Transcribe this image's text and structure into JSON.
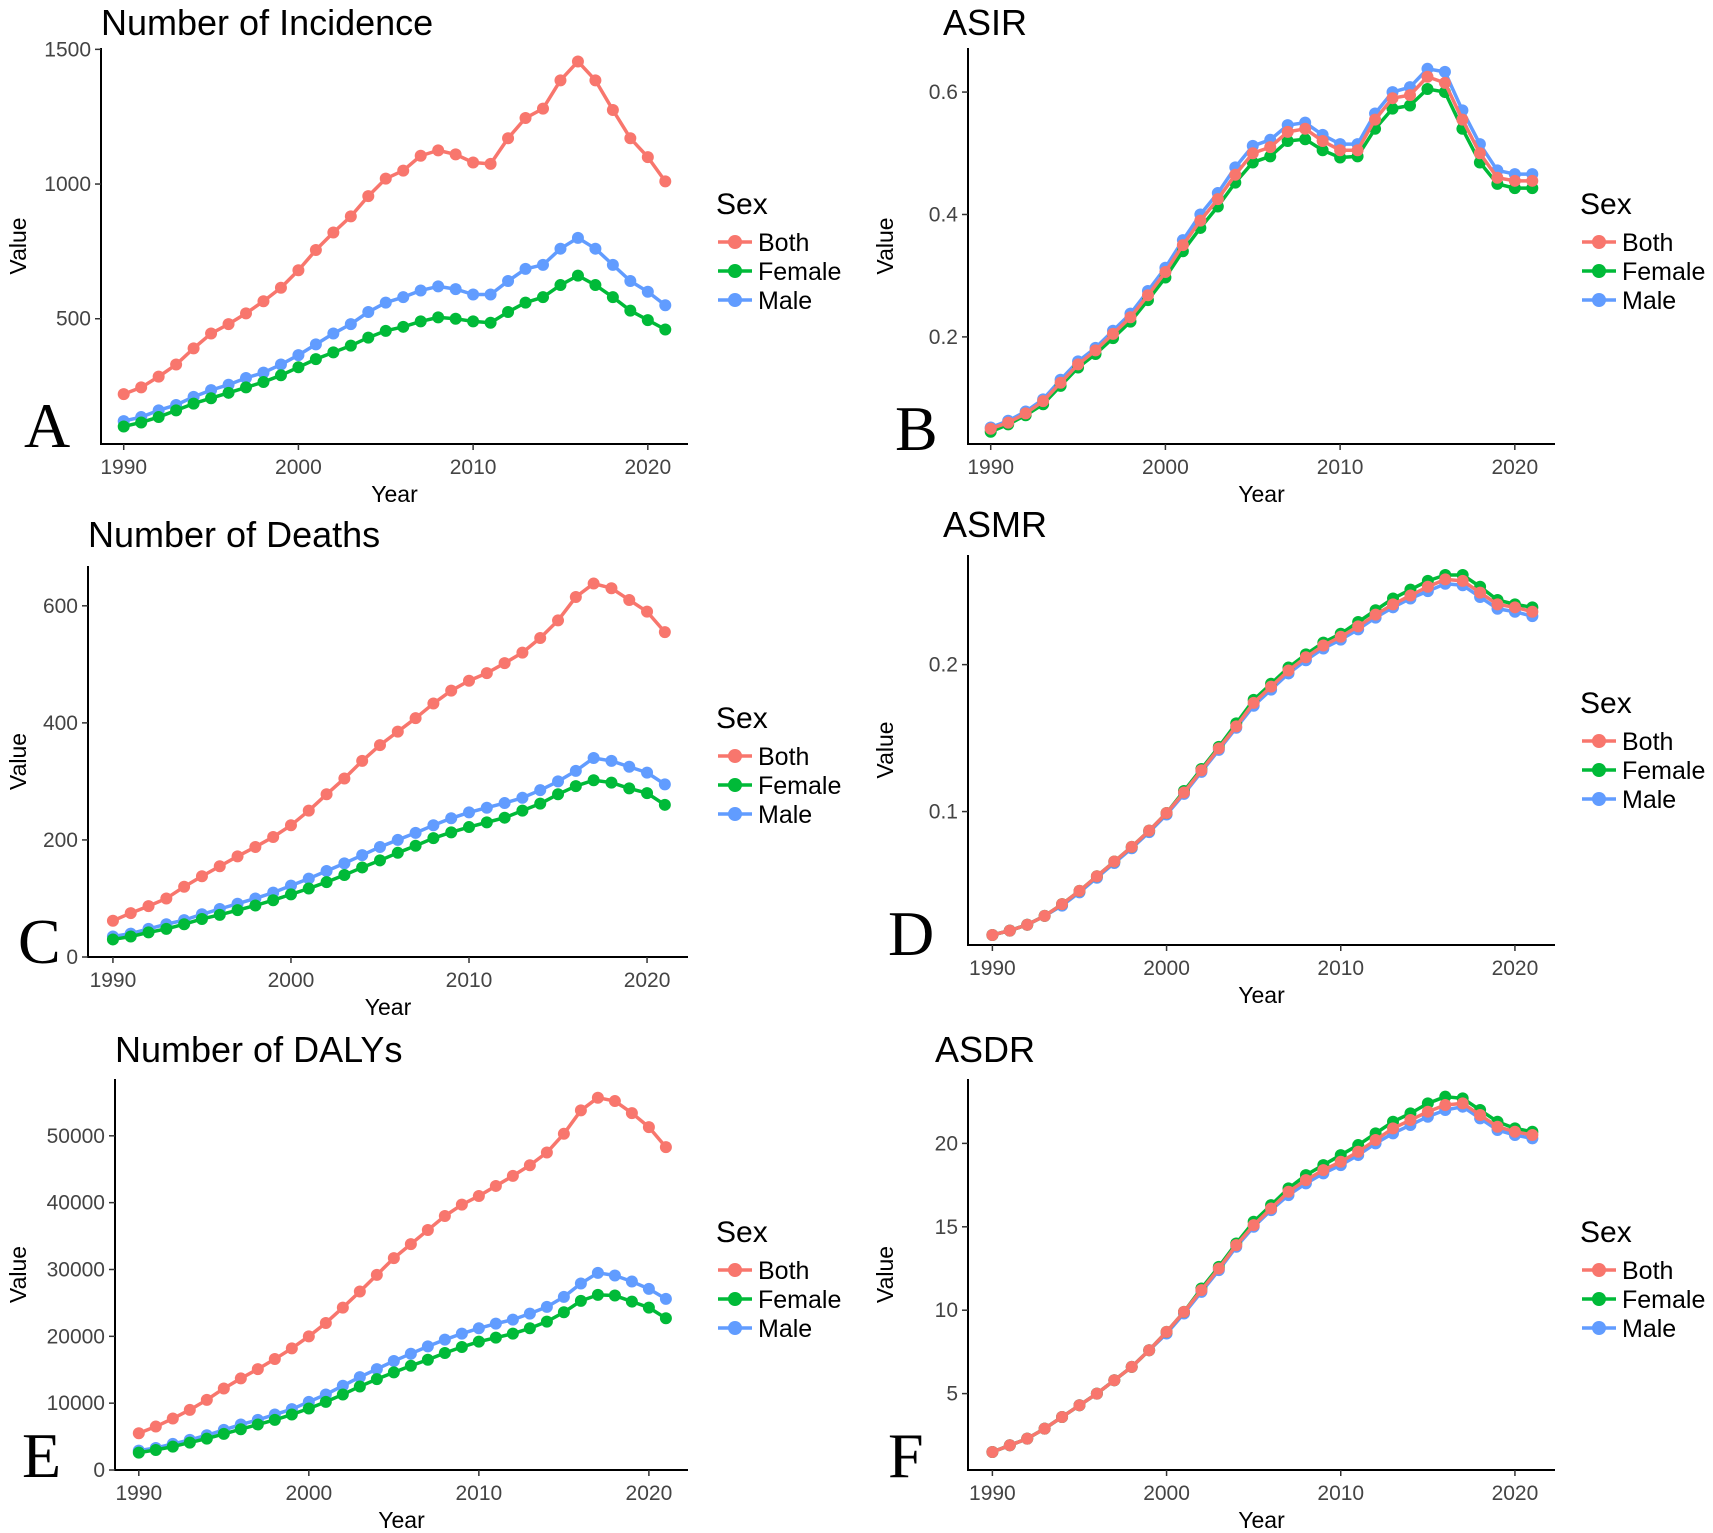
{
  "chart_data": [
    {
      "panel": "A",
      "type": "line",
      "title": "Number of Incidence",
      "xlabel": "Year",
      "ylabel": "Value",
      "xlim": [
        1988.7,
        2022.3
      ],
      "ylim": [
        35,
        1505
      ],
      "xticks": [
        1990,
        2000,
        2010,
        2020
      ],
      "yticks": [
        500,
        1000,
        1500
      ],
      "x": [
        1990,
        1991,
        1992,
        1993,
        1994,
        1995,
        1996,
        1997,
        1998,
        1999,
        2000,
        2001,
        2002,
        2003,
        2004,
        2005,
        2006,
        2007,
        2008,
        2009,
        2010,
        2011,
        2012,
        2013,
        2014,
        2015,
        2016,
        2017,
        2018,
        2019,
        2020,
        2021
      ],
      "series": [
        {
          "name": "Both",
          "values": [
            220,
            245,
            285,
            330,
            390,
            445,
            480,
            520,
            565,
            615,
            680,
            755,
            820,
            880,
            955,
            1020,
            1050,
            1105,
            1125,
            1110,
            1080,
            1075,
            1170,
            1245,
            1280,
            1385,
            1455,
            1385,
            1275,
            1170,
            1100,
            1010
          ]
        },
        {
          "name": "Female",
          "values": [
            100,
            115,
            135,
            160,
            185,
            205,
            225,
            245,
            265,
            290,
            320,
            350,
            375,
            400,
            430,
            455,
            470,
            490,
            505,
            500,
            490,
            485,
            525,
            560,
            580,
            625,
            660,
            625,
            580,
            530,
            495,
            460
          ]
        },
        {
          "name": "Male",
          "values": [
            120,
            135,
            160,
            180,
            210,
            235,
            255,
            280,
            300,
            330,
            365,
            405,
            445,
            480,
            525,
            560,
            580,
            605,
            620,
            610,
            590,
            590,
            640,
            685,
            700,
            760,
            800,
            760,
            700,
            640,
            600,
            550
          ]
        }
      ],
      "legend": {
        "title": "Sex",
        "entries": [
          "Both",
          "Female",
          "Male"
        ]
      }
    },
    {
      "panel": "B",
      "type": "line",
      "title": "ASIR",
      "xlabel": "Year",
      "ylabel": "Value",
      "xlim": [
        1988.7,
        2022.3
      ],
      "ylim": [
        0.025,
        0.672
      ],
      "xticks": [
        1990,
        2000,
        2010,
        2020
      ],
      "yticks": [
        0.2,
        0.4,
        0.6
      ],
      "x": [
        1990,
        1991,
        1992,
        1993,
        1994,
        1995,
        1996,
        1997,
        1998,
        1999,
        2000,
        2001,
        2002,
        2003,
        2004,
        2005,
        2006,
        2007,
        2008,
        2009,
        2010,
        2011,
        2012,
        2013,
        2014,
        2015,
        2016,
        2017,
        2018,
        2019,
        2020,
        2021
      ],
      "series": [
        {
          "name": "Both",
          "values": [
            0.05,
            0.06,
            0.075,
            0.095,
            0.125,
            0.155,
            0.178,
            0.205,
            0.232,
            0.268,
            0.306,
            0.35,
            0.39,
            0.425,
            0.465,
            0.5,
            0.51,
            0.535,
            0.54,
            0.52,
            0.505,
            0.505,
            0.555,
            0.59,
            0.595,
            0.625,
            0.615,
            0.555,
            0.5,
            0.46,
            0.455,
            0.455
          ]
        },
        {
          "name": "Female",
          "values": [
            0.045,
            0.057,
            0.072,
            0.09,
            0.12,
            0.15,
            0.172,
            0.198,
            0.225,
            0.26,
            0.297,
            0.34,
            0.378,
            0.413,
            0.452,
            0.485,
            0.495,
            0.52,
            0.523,
            0.505,
            0.493,
            0.495,
            0.54,
            0.573,
            0.578,
            0.605,
            0.6,
            0.54,
            0.485,
            0.45,
            0.443,
            0.443
          ]
        },
        {
          "name": "Male",
          "values": [
            0.052,
            0.063,
            0.078,
            0.098,
            0.13,
            0.16,
            0.182,
            0.21,
            0.238,
            0.275,
            0.313,
            0.358,
            0.4,
            0.435,
            0.477,
            0.512,
            0.522,
            0.546,
            0.55,
            0.53,
            0.515,
            0.515,
            0.565,
            0.6,
            0.608,
            0.638,
            0.633,
            0.57,
            0.515,
            0.472,
            0.466,
            0.466
          ]
        }
      ],
      "legend": {
        "title": "Sex",
        "entries": [
          "Both",
          "Female",
          "Male"
        ]
      }
    },
    {
      "panel": "C",
      "type": "line",
      "title": "Number of Deaths",
      "xlabel": "Year",
      "ylabel": "Value",
      "xlim": [
        1988.6,
        2022.3
      ],
      "ylim": [
        0,
        668
      ],
      "xticks": [
        1990,
        2000,
        2010,
        2020
      ],
      "yticks": [
        0,
        200,
        400,
        600
      ],
      "x": [
        1990,
        1991,
        1992,
        1993,
        1994,
        1995,
        1996,
        1997,
        1998,
        1999,
        2000,
        2001,
        2002,
        2003,
        2004,
        2005,
        2006,
        2007,
        2008,
        2009,
        2010,
        2011,
        2012,
        2013,
        2014,
        2015,
        2016,
        2017,
        2018,
        2019,
        2020,
        2021
      ],
      "series": [
        {
          "name": "Both",
          "values": [
            62,
            75,
            87,
            100,
            120,
            138,
            155,
            172,
            188,
            205,
            225,
            250,
            278,
            305,
            335,
            362,
            385,
            408,
            433,
            455,
            472,
            485,
            502,
            520,
            545,
            575,
            615,
            638,
            630,
            610,
            590,
            555
          ]
        },
        {
          "name": "Female",
          "values": [
            30,
            35,
            42,
            48,
            56,
            65,
            72,
            80,
            88,
            97,
            107,
            117,
            128,
            140,
            153,
            165,
            178,
            190,
            203,
            213,
            222,
            230,
            238,
            250,
            262,
            278,
            292,
            302,
            298,
            288,
            280,
            260
          ]
        },
        {
          "name": "Male",
          "values": [
            35,
            40,
            48,
            56,
            63,
            73,
            82,
            91,
            100,
            110,
            122,
            134,
            147,
            160,
            174,
            188,
            200,
            212,
            225,
            237,
            247,
            255,
            263,
            272,
            285,
            300,
            318,
            340,
            335,
            325,
            315,
            295
          ]
        }
      ],
      "legend": {
        "title": "Sex",
        "entries": [
          "Both",
          "Female",
          "Male"
        ]
      }
    },
    {
      "panel": "D",
      "type": "line",
      "title": "ASMR",
      "xlabel": "Year",
      "ylabel": "Value",
      "xlim": [
        1988.6,
        2022.3
      ],
      "ylim": [
        0.0092,
        0.2746
      ],
      "xticks": [
        1990,
        2000,
        2010,
        2020
      ],
      "yticks": [
        0.1,
        0.2
      ],
      "x": [
        1990,
        1991,
        1992,
        1993,
        1994,
        1995,
        1996,
        1997,
        1998,
        1999,
        2000,
        2001,
        2002,
        2003,
        2004,
        2005,
        2006,
        2007,
        2008,
        2009,
        2010,
        2011,
        2012,
        2013,
        2014,
        2015,
        2016,
        2017,
        2018,
        2019,
        2020,
        2021
      ],
      "series": [
        {
          "name": "Both",
          "values": [
            0.016,
            0.019,
            0.023,
            0.029,
            0.037,
            0.046,
            0.056,
            0.066,
            0.076,
            0.087,
            0.099,
            0.113,
            0.128,
            0.143,
            0.158,
            0.174,
            0.185,
            0.196,
            0.205,
            0.213,
            0.219,
            0.226,
            0.234,
            0.241,
            0.247,
            0.253,
            0.258,
            0.257,
            0.249,
            0.241,
            0.239,
            0.236
          ]
        },
        {
          "name": "Female",
          "values": [
            0.016,
            0.019,
            0.023,
            0.029,
            0.037,
            0.046,
            0.056,
            0.066,
            0.076,
            0.087,
            0.099,
            0.114,
            0.129,
            0.144,
            0.16,
            0.176,
            0.187,
            0.198,
            0.207,
            0.215,
            0.221,
            0.229,
            0.237,
            0.245,
            0.251,
            0.257,
            0.261,
            0.261,
            0.253,
            0.244,
            0.241,
            0.239
          ]
        },
        {
          "name": "Male",
          "values": [
            0.016,
            0.019,
            0.023,
            0.029,
            0.036,
            0.045,
            0.055,
            0.065,
            0.075,
            0.086,
            0.098,
            0.112,
            0.127,
            0.142,
            0.157,
            0.172,
            0.183,
            0.194,
            0.203,
            0.211,
            0.217,
            0.224,
            0.232,
            0.239,
            0.245,
            0.25,
            0.255,
            0.254,
            0.246,
            0.238,
            0.236,
            0.233
          ]
        }
      ],
      "legend": {
        "title": "Sex",
        "entries": [
          "Both",
          "Female",
          "Male"
        ]
      }
    },
    {
      "panel": "E",
      "type": "line",
      "title": "Number of DALYs",
      "xlabel": "Year",
      "ylabel": "Value",
      "xlim": [
        1988.6,
        2022.3
      ],
      "ylim": [
        0,
        58500
      ],
      "xticks": [
        1990,
        2000,
        2010,
        2020
      ],
      "yticks": [
        0,
        10000,
        20000,
        30000,
        40000,
        50000
      ],
      "x": [
        1990,
        1991,
        1992,
        1993,
        1994,
        1995,
        1996,
        1997,
        1998,
        1999,
        2000,
        2001,
        2002,
        2003,
        2004,
        2005,
        2006,
        2007,
        2008,
        2009,
        2010,
        2011,
        2012,
        2013,
        2014,
        2015,
        2016,
        2017,
        2018,
        2019,
        2020,
        2021
      ],
      "series": [
        {
          "name": "Both",
          "values": [
            5500,
            6500,
            7700,
            9000,
            10500,
            12200,
            13700,
            15100,
            16600,
            18200,
            20000,
            22000,
            24300,
            26700,
            29200,
            31700,
            33800,
            35900,
            38000,
            39700,
            41000,
            42500,
            44000,
            45600,
            47500,
            50300,
            53800,
            55700,
            55200,
            53400,
            51300,
            48300
          ]
        },
        {
          "name": "Female",
          "values": [
            2600,
            3000,
            3500,
            4100,
            4700,
            5400,
            6100,
            6800,
            7500,
            8300,
            9200,
            10200,
            11300,
            12500,
            13600,
            14600,
            15600,
            16500,
            17500,
            18400,
            19200,
            19800,
            20400,
            21200,
            22200,
            23600,
            25300,
            26200,
            26100,
            25200,
            24300,
            22700
          ]
        },
        {
          "name": "Male",
          "values": [
            2900,
            3300,
            3900,
            4500,
            5200,
            6000,
            6800,
            7500,
            8300,
            9100,
            10200,
            11300,
            12600,
            13900,
            15100,
            16300,
            17400,
            18500,
            19500,
            20400,
            21200,
            21900,
            22500,
            23400,
            24400,
            25900,
            27900,
            29500,
            29100,
            28200,
            27100,
            25600
          ]
        }
      ],
      "legend": {
        "title": "Sex",
        "entries": [
          "Both",
          "Female",
          "Male"
        ]
      }
    },
    {
      "panel": "F",
      "type": "line",
      "title": "ASDR",
      "xlabel": "Year",
      "ylabel": "Value",
      "xlim": [
        1988.6,
        2022.3
      ],
      "ylim": [
        0.42,
        23.86
      ],
      "xticks": [
        1990,
        2000,
        2010,
        2020
      ],
      "yticks": [
        5,
        10,
        15,
        20
      ],
      "x": [
        1990,
        1991,
        1992,
        1993,
        1994,
        1995,
        1996,
        1997,
        1998,
        1999,
        2000,
        2001,
        2002,
        2003,
        2004,
        2005,
        2006,
        2007,
        2008,
        2009,
        2010,
        2011,
        2012,
        2013,
        2014,
        2015,
        2016,
        2017,
        2018,
        2019,
        2020,
        2021
      ],
      "series": [
        {
          "name": "Both",
          "values": [
            1.5,
            1.9,
            2.3,
            2.9,
            3.6,
            4.3,
            5.0,
            5.8,
            6.6,
            7.6,
            8.7,
            9.9,
            11.2,
            12.5,
            13.9,
            15.1,
            16.1,
            17.1,
            17.8,
            18.4,
            18.9,
            19.5,
            20.2,
            20.9,
            21.4,
            21.9,
            22.3,
            22.4,
            21.7,
            21.0,
            20.7,
            20.5
          ]
        },
        {
          "name": "Female",
          "values": [
            1.5,
            1.9,
            2.3,
            2.9,
            3.6,
            4.3,
            5.0,
            5.8,
            6.6,
            7.6,
            8.7,
            9.9,
            11.3,
            12.6,
            14.0,
            15.3,
            16.3,
            17.3,
            18.1,
            18.7,
            19.3,
            19.9,
            20.6,
            21.3,
            21.8,
            22.4,
            22.8,
            22.7,
            22.0,
            21.3,
            20.9,
            20.7
          ]
        },
        {
          "name": "Male",
          "values": [
            1.5,
            1.9,
            2.3,
            2.9,
            3.6,
            4.3,
            5.0,
            5.8,
            6.6,
            7.6,
            8.6,
            9.8,
            11.1,
            12.4,
            13.8,
            15.0,
            16.0,
            16.9,
            17.6,
            18.2,
            18.7,
            19.3,
            20.0,
            20.6,
            21.1,
            21.6,
            22.0,
            22.2,
            21.5,
            20.8,
            20.5,
            20.3
          ]
        }
      ],
      "legend": {
        "title": "Sex",
        "entries": [
          "Both",
          "Female",
          "Male"
        ]
      }
    }
  ],
  "colors": {
    "Both": "#F8766D",
    "Female": "#00BA38",
    "Male": "#619CFF"
  }
}
